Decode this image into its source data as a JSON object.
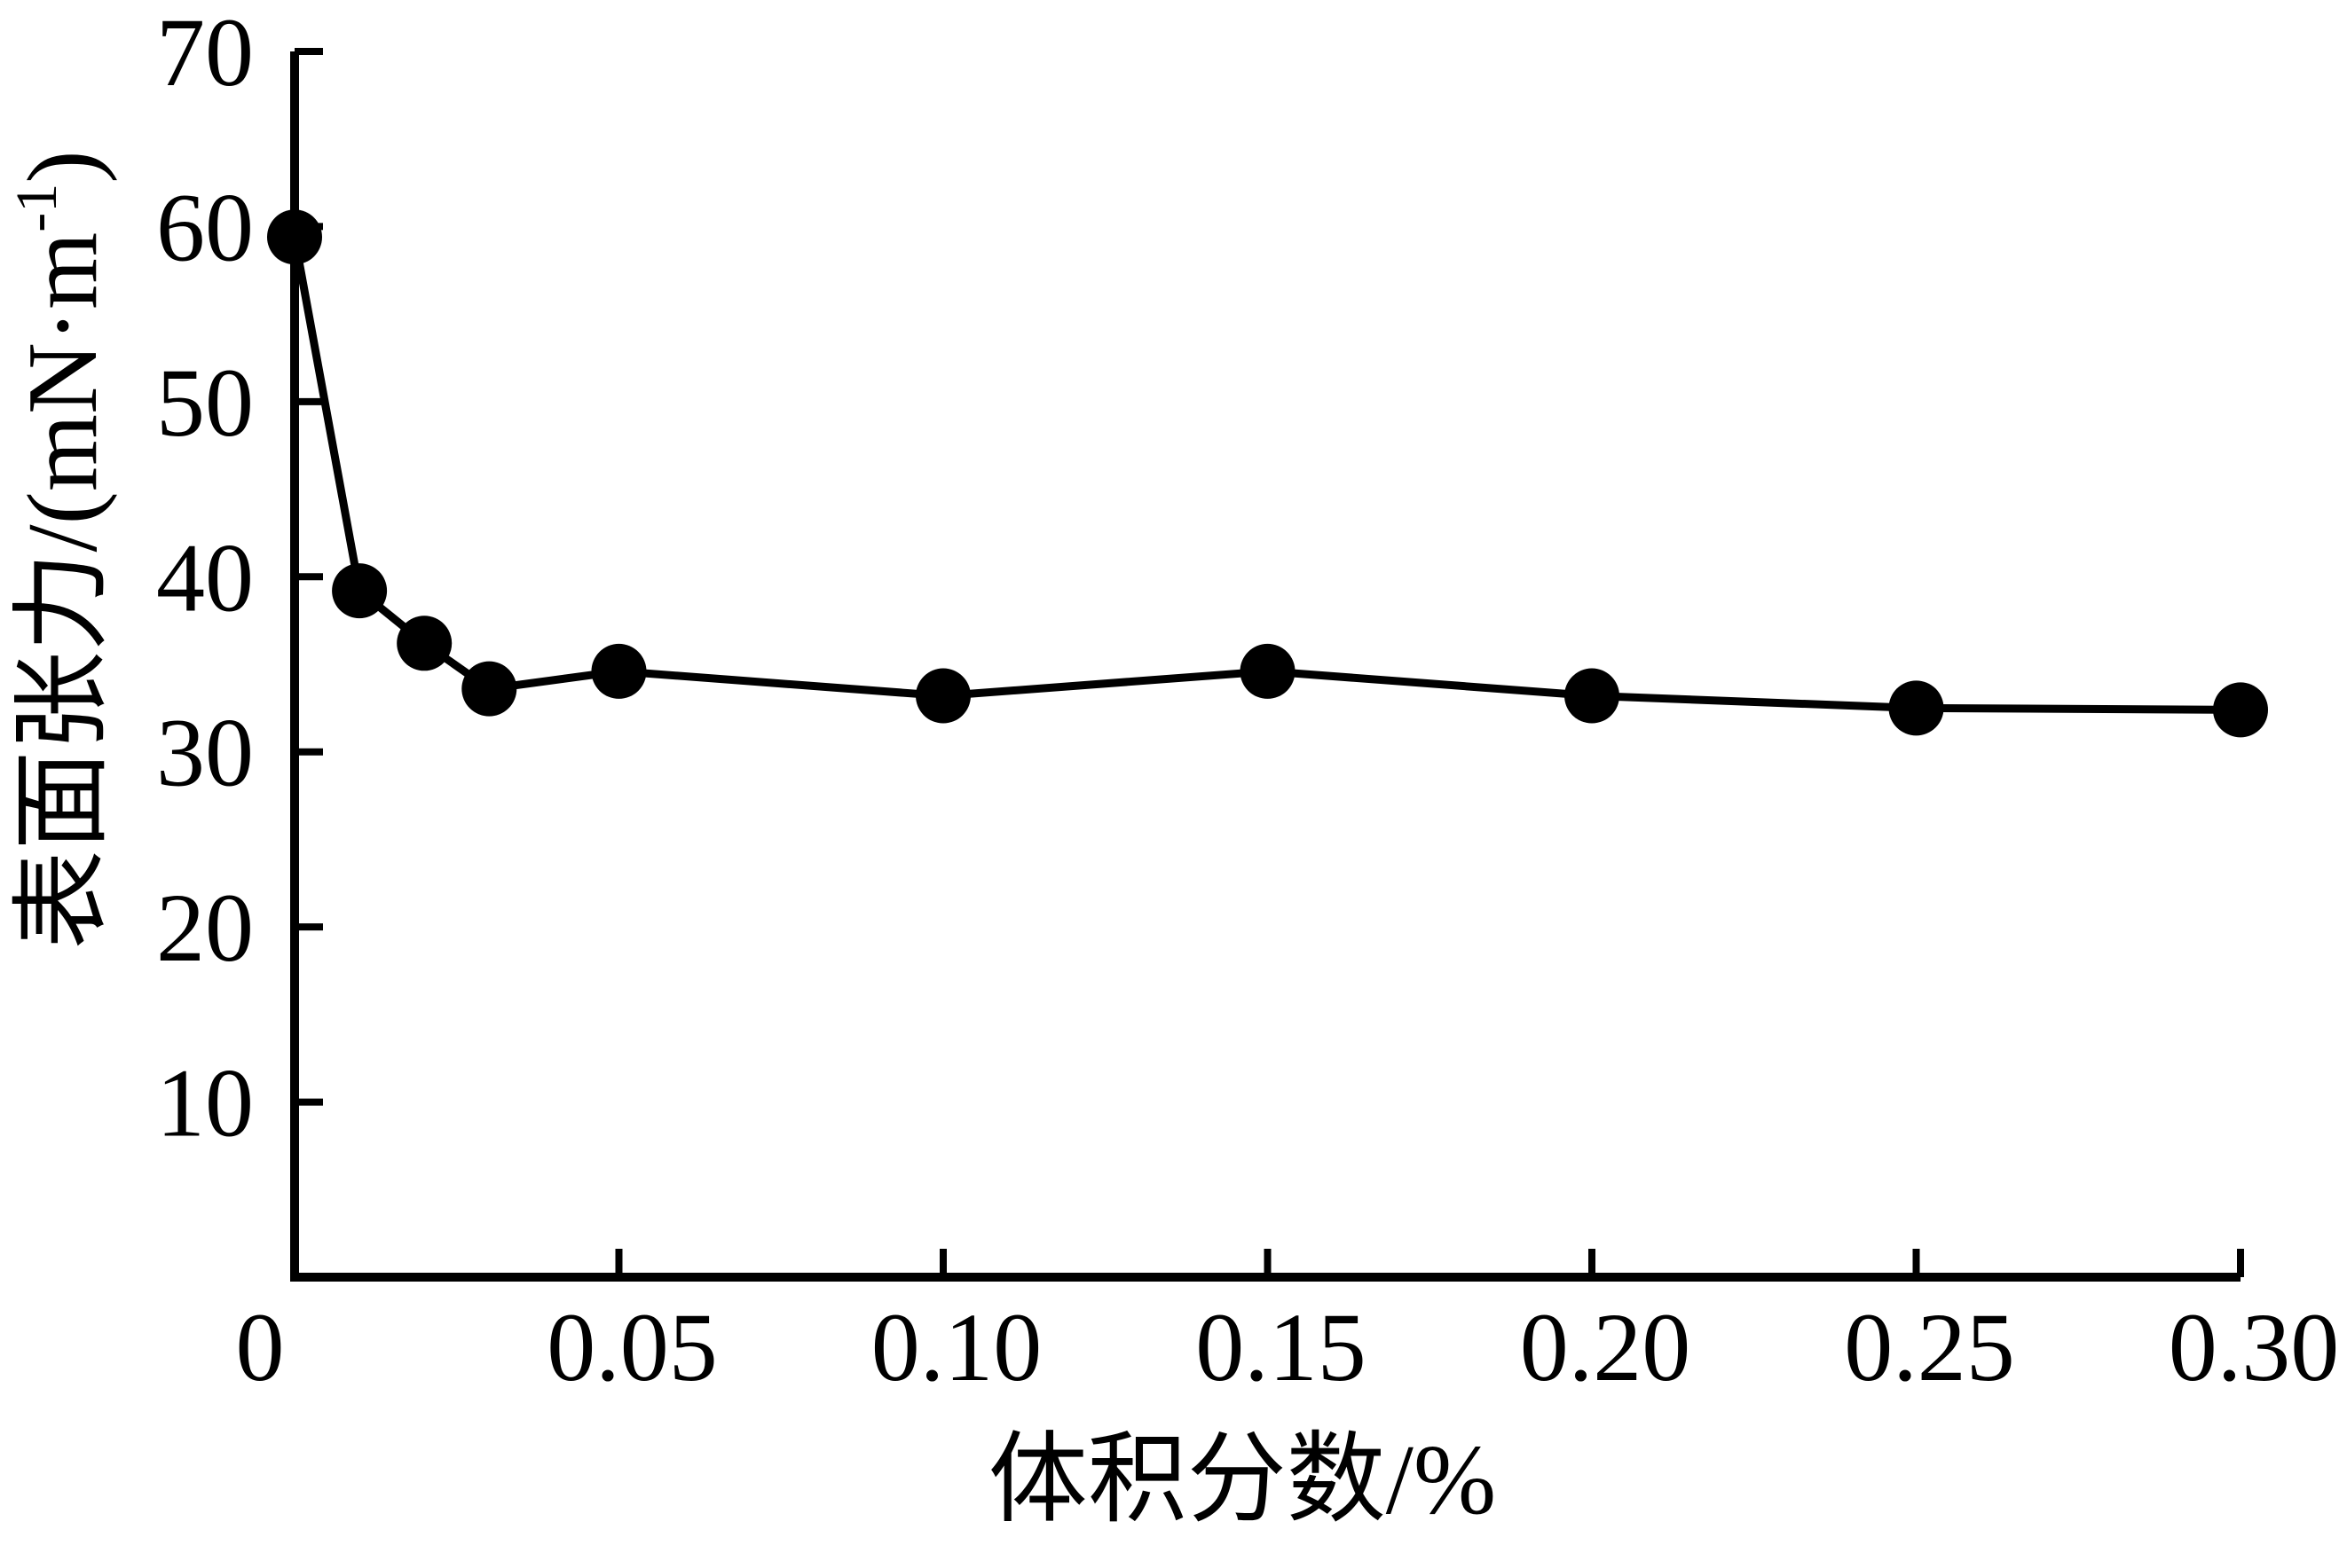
{
  "chart_data": {
    "type": "line",
    "title": "",
    "xlabel": "体积分数/%",
    "ylabel": "表面张力/(mN·m⁻¹)",
    "ylabel_parts": {
      "pre": "表面张力/(mN·m",
      "sup": "-1",
      "post": ")"
    },
    "series": [
      {
        "name": "surface-tension",
        "x": [
          0,
          0.01,
          0.02,
          0.03,
          0.05,
          0.1,
          0.15,
          0.2,
          0.25,
          0.3
        ],
        "values": [
          59.4,
          39.2,
          36.2,
          33.6,
          34.6,
          33.2,
          34.6,
          33.2,
          32.5,
          32.4
        ],
        "marker": "filled-circle",
        "color": "#000000"
      }
    ],
    "xlim": [
      0,
      0.3
    ],
    "ylim": [
      0,
      70
    ],
    "x_ticks": [
      0,
      0.05,
      0.1,
      0.15,
      0.2,
      0.25,
      0.3
    ],
    "x_tick_labels": [
      "0",
      "0.05",
      "0.10",
      "0.15",
      "0.20",
      "0.25",
      "0.30"
    ],
    "y_ticks": [
      10,
      20,
      30,
      40,
      50,
      60,
      70
    ],
    "y_tick_labels": [
      "10",
      "20",
      "30",
      "40",
      "50",
      "60",
      "70"
    ],
    "grid": false,
    "legend": null,
    "background_color": "#ffffff",
    "axis_color": "#000000"
  }
}
